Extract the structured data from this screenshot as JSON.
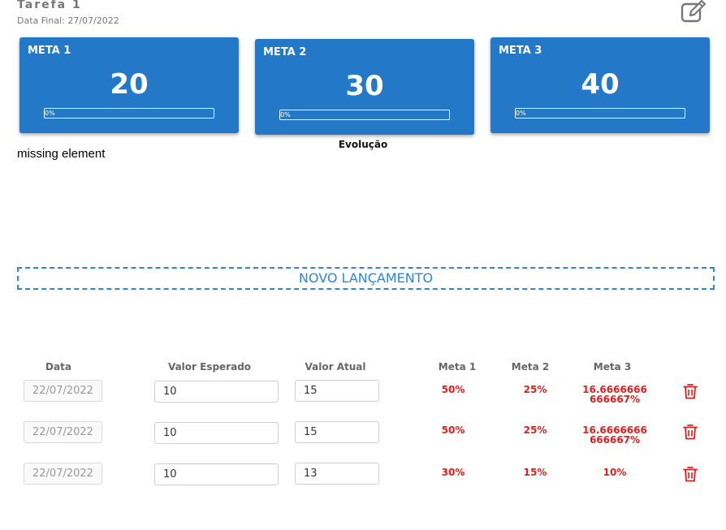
{
  "header": {
    "title": "Tarefa 1",
    "subtitle": "Data Final: 27/07/2022",
    "edit_icon": "edit-icon"
  },
  "metas": [
    {
      "label": "META 1",
      "value": "20",
      "progress_text": "0%",
      "progress": 0
    },
    {
      "label": "META 2",
      "value": "30",
      "progress_text": "0%",
      "progress": 0
    },
    {
      "label": "META 3",
      "value": "40",
      "progress_text": "0%",
      "progress": 0
    }
  ],
  "evolucao": "Evolução",
  "missing_text": "missing element",
  "novo_lancamento": "NOVO LANÇAMENTO",
  "table": {
    "headers": [
      "Data",
      "Valor Esperado",
      "Valor Atual",
      "Meta 1",
      "Meta 2",
      "Meta 3"
    ],
    "rows": [
      {
        "data": "22/07/2022",
        "valor_esperado": "10",
        "valor_atual": "15",
        "meta1": "50%",
        "meta2": "25%",
        "meta3a": "16.6666666",
        "meta3b": "666667%"
      },
      {
        "data": "22/07/2022",
        "valor_esperado": "10",
        "valor_atual": "15",
        "meta1": "50%",
        "meta2": "25%",
        "meta3a": "16.6666666",
        "meta3b": "666667%"
      },
      {
        "data": "22/07/2022",
        "valor_esperado": "10",
        "valor_atual": "13",
        "meta1": "30%",
        "meta2": "15%",
        "meta3a": "10%",
        "meta3b": ""
      }
    ]
  },
  "colors": {
    "card": "#2379c8",
    "accent": "#2f86d6",
    "danger": "#e01f1f"
  }
}
